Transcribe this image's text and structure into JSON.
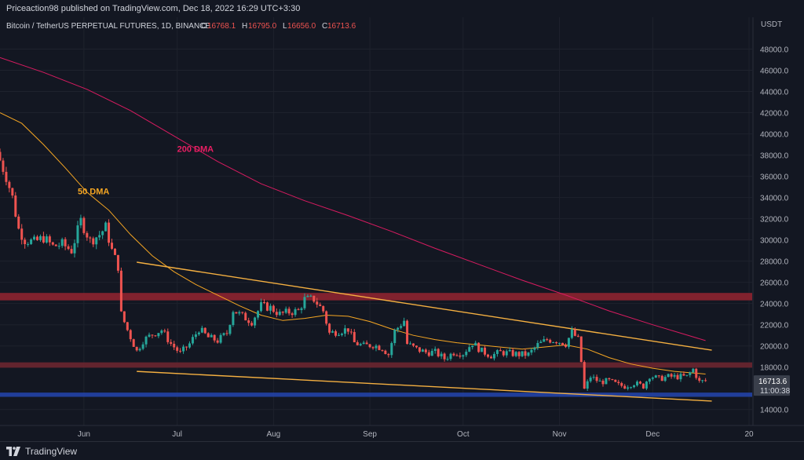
{
  "header": {
    "publisher_text": "Priceaction98 published on TradingView.com, Dec 18, 2022 16:29 UTC+3:30"
  },
  "footer": {
    "brand": "TradingView"
  },
  "colors": {
    "background": "#131722",
    "up": "#26a69a",
    "down": "#ef5350",
    "ma50": "#f5a623",
    "ma200": "#d81b60",
    "trendline": "#f5b041",
    "resistance_zone": "#8e2430",
    "support_zone": "#2442a6"
  },
  "chart_data": {
    "type": "candlestick",
    "title": "Bitcoin / TetherUS PERPETUAL FUTURES, 1D, BINANCE",
    "ohlc": {
      "o_label": "O",
      "o": "16768.1",
      "h_label": "H",
      "h": "16795.0",
      "l_label": "L",
      "l": "16656.0",
      "c_label": "C",
      "c": "16713.6"
    },
    "currency": "USDT",
    "last_price": "16713.6",
    "countdown": "11:00:38",
    "ylim": [
      12500,
      51000
    ],
    "y_ticks": [
      "48000.0",
      "46000.0",
      "44000.0",
      "42000.0",
      "40000.0",
      "38000.0",
      "36000.0",
      "34000.0",
      "32000.0",
      "30000.0",
      "28000.0",
      "26000.0",
      "24000.0",
      "22000.0",
      "20000.0",
      "18000.0",
      "14000.0"
    ],
    "x_ticks": [
      "Jun",
      "Jul",
      "Aug",
      "Sep",
      "Oct",
      "Nov",
      "Dec",
      "20"
    ],
    "x_tick_dates": [
      "2022-06-01",
      "2022-07-01",
      "2022-08-01",
      "2022-09-01",
      "2022-10-01",
      "2022-11-01",
      "2022-12-01",
      "2023-01-01"
    ],
    "x_start": "2022-05-05",
    "x_end": "2023-01-02",
    "annotations": [
      {
        "text": "200 DMA",
        "date": "2022-07-01",
        "price": 38300,
        "color": "#e91e63"
      },
      {
        "text": "50 DMA",
        "date": "2022-05-30",
        "price": 34300,
        "color": "#f5a623"
      }
    ],
    "zones": [
      {
        "name": "resistance-zone-24k",
        "low": 24300,
        "high": 25000,
        "color": "#8e2430"
      },
      {
        "name": "resistance-zone-18k",
        "low": 17950,
        "high": 18450,
        "color": "#6b2630"
      },
      {
        "name": "support-zone-15k",
        "low": 15200,
        "high": 15600,
        "color": "#2442a6"
      }
    ],
    "trendlines": [
      {
        "name": "upper-trendline",
        "start_date": "2022-06-18",
        "start_price": 27900,
        "end_date": "2022-12-20",
        "end_price": 19600
      },
      {
        "name": "lower-trendline",
        "start_date": "2022-06-18",
        "start_price": 17600,
        "end_date": "2022-12-20",
        "end_price": 14800
      }
    ],
    "series": [
      {
        "name": "50 DMA",
        "points": [
          [
            "2022-05-05",
            42000
          ],
          [
            "2022-05-12",
            41000
          ],
          [
            "2022-05-19",
            39000
          ],
          [
            "2022-05-26",
            36800
          ],
          [
            "2022-06-02",
            34500
          ],
          [
            "2022-06-09",
            32800
          ],
          [
            "2022-06-16",
            30500
          ],
          [
            "2022-06-23",
            28500
          ],
          [
            "2022-06-30",
            27000
          ],
          [
            "2022-07-07",
            25800
          ],
          [
            "2022-07-14",
            24800
          ],
          [
            "2022-07-21",
            23800
          ],
          [
            "2022-07-28",
            22900
          ],
          [
            "2022-08-04",
            22400
          ],
          [
            "2022-08-11",
            22600
          ],
          [
            "2022-08-18",
            22900
          ],
          [
            "2022-08-25",
            22800
          ],
          [
            "2022-09-01",
            22300
          ],
          [
            "2022-09-08",
            21600
          ],
          [
            "2022-09-15",
            21000
          ],
          [
            "2022-09-22",
            20600
          ],
          [
            "2022-09-29",
            20300
          ],
          [
            "2022-10-06",
            20100
          ],
          [
            "2022-10-13",
            19900
          ],
          [
            "2022-10-20",
            19700
          ],
          [
            "2022-10-27",
            19900
          ],
          [
            "2022-11-03",
            20100
          ],
          [
            "2022-11-10",
            19700
          ],
          [
            "2022-11-17",
            18900
          ],
          [
            "2022-11-24",
            18300
          ],
          [
            "2022-12-01",
            17900
          ],
          [
            "2022-12-08",
            17600
          ],
          [
            "2022-12-18",
            17350
          ]
        ]
      },
      {
        "name": "200 DMA",
        "points": [
          [
            "2022-05-05",
            47200
          ],
          [
            "2022-05-19",
            45800
          ],
          [
            "2022-06-02",
            44200
          ],
          [
            "2022-06-16",
            42200
          ],
          [
            "2022-06-30",
            39800
          ],
          [
            "2022-07-14",
            37400
          ],
          [
            "2022-07-28",
            35300
          ],
          [
            "2022-08-11",
            33700
          ],
          [
            "2022-08-25",
            32300
          ],
          [
            "2022-09-08",
            30800
          ],
          [
            "2022-09-22",
            29200
          ],
          [
            "2022-10-06",
            27700
          ],
          [
            "2022-10-20",
            26200
          ],
          [
            "2022-11-03",
            24800
          ],
          [
            "2022-11-17",
            23300
          ],
          [
            "2022-12-01",
            22000
          ],
          [
            "2022-12-18",
            20500
          ]
        ]
      }
    ],
    "candles_close": [
      [
        "2022-05-05",
        37500
      ],
      [
        "2022-05-07",
        36000
      ],
      [
        "2022-05-09",
        34000
      ],
      [
        "2022-05-11",
        31000
      ],
      [
        "2022-05-13",
        30000
      ],
      [
        "2022-05-16",
        29800
      ],
      [
        "2022-05-19",
        30200
      ],
      [
        "2022-05-22",
        29400
      ],
      [
        "2022-05-25",
        29600
      ],
      [
        "2022-05-28",
        29000
      ],
      [
        "2022-05-31",
        31800
      ],
      [
        "2022-06-03",
        29900
      ],
      [
        "2022-06-06",
        30500
      ],
      [
        "2022-06-08",
        31200
      ],
      [
        "2022-06-10",
        29000
      ],
      [
        "2022-06-12",
        27500
      ],
      [
        "2022-06-13",
        23000
      ],
      [
        "2022-06-15",
        21500
      ],
      [
        "2022-06-18",
        19500
      ],
      [
        "2022-06-20",
        20500
      ],
      [
        "2022-06-23",
        21100
      ],
      [
        "2022-06-26",
        21500
      ],
      [
        "2022-06-29",
        20200
      ],
      [
        "2022-07-02",
        19300
      ],
      [
        "2022-07-05",
        20200
      ],
      [
        "2022-07-08",
        21600
      ],
      [
        "2022-07-11",
        20800
      ],
      [
        "2022-07-14",
        20500
      ],
      [
        "2022-07-17",
        21200
      ],
      [
        "2022-07-19",
        23400
      ],
      [
        "2022-07-22",
        22800
      ],
      [
        "2022-07-25",
        22300
      ],
      [
        "2022-07-28",
        23800
      ],
      [
        "2022-07-31",
        23600
      ],
      [
        "2022-08-03",
        23000
      ],
      [
        "2022-08-06",
        23200
      ],
      [
        "2022-08-09",
        23300
      ],
      [
        "2022-08-11",
        24400
      ],
      [
        "2022-08-14",
        24400
      ],
      [
        "2022-08-17",
        23300
      ],
      [
        "2022-08-19",
        21200
      ],
      [
        "2022-08-22",
        21400
      ],
      [
        "2022-08-25",
        21600
      ],
      [
        "2022-08-27",
        20300
      ],
      [
        "2022-08-30",
        20000
      ],
      [
        "2022-09-02",
        20100
      ],
      [
        "2022-09-05",
        19800
      ],
      [
        "2022-09-07",
        19200
      ],
      [
        "2022-09-09",
        21400
      ],
      [
        "2022-09-12",
        22400
      ],
      [
        "2022-09-13",
        20200
      ],
      [
        "2022-09-16",
        19700
      ],
      [
        "2022-09-19",
        19400
      ],
      [
        "2022-09-22",
        19400
      ],
      [
        "2022-09-25",
        18800
      ],
      [
        "2022-09-28",
        19400
      ],
      [
        "2022-10-01",
        19300
      ],
      [
        "2022-10-04",
        20300
      ],
      [
        "2022-10-07",
        19500
      ],
      [
        "2022-10-10",
        19100
      ],
      [
        "2022-10-13",
        19400
      ],
      [
        "2022-10-16",
        19300
      ],
      [
        "2022-10-19",
        19200
      ],
      [
        "2022-10-22",
        19200
      ],
      [
        "2022-10-25",
        20100
      ],
      [
        "2022-10-28",
        20600
      ],
      [
        "2022-10-31",
        20500
      ],
      [
        "2022-11-03",
        20200
      ],
      [
        "2022-11-05",
        21300
      ],
      [
        "2022-11-07",
        20600
      ],
      [
        "2022-11-08",
        18500
      ],
      [
        "2022-11-09",
        15900
      ],
      [
        "2022-11-11",
        17100
      ],
      [
        "2022-11-14",
        16600
      ],
      [
        "2022-11-17",
        16700
      ],
      [
        "2022-11-20",
        16300
      ],
      [
        "2022-11-22",
        16200
      ],
      [
        "2022-11-25",
        16500
      ],
      [
        "2022-11-28",
        16200
      ],
      [
        "2022-11-30",
        17200
      ],
      [
        "2022-12-03",
        16900
      ],
      [
        "2022-12-06",
        17100
      ],
      [
        "2022-12-09",
        17100
      ],
      [
        "2022-12-12",
        17100
      ],
      [
        "2022-12-14",
        17800
      ],
      [
        "2022-12-16",
        16600
      ],
      [
        "2022-12-18",
        16713.6
      ]
    ]
  }
}
